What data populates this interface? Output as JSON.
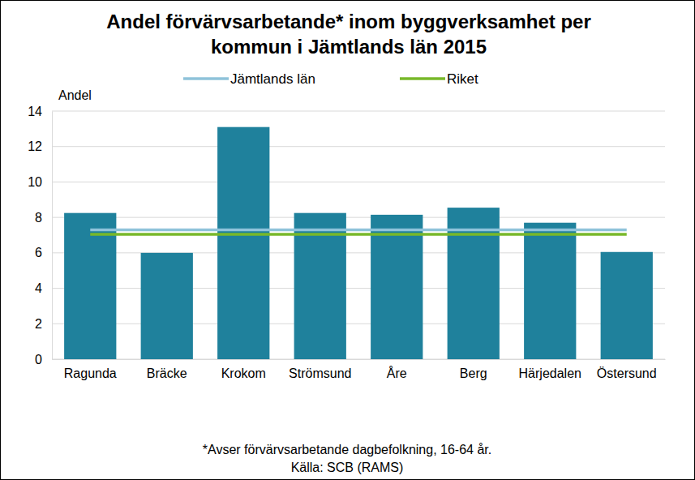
{
  "chart_data": {
    "type": "bar",
    "title": [
      "Andel förvärvsarbetande* inom byggverksamhet per",
      "kommun i Jämtlands län 2015"
    ],
    "ylabel": "Andel",
    "categories": [
      "Ragunda",
      "Bräcke",
      "Krokom",
      "Strömsund",
      "Åre",
      "Berg",
      "Härjedalen",
      "Östersund"
    ],
    "values": [
      8.25,
      6.0,
      13.1,
      8.25,
      8.15,
      8.55,
      7.7,
      6.05
    ],
    "color": "#1f819c",
    "reference_lines": [
      {
        "name": "Jämtlands län",
        "color": "#8fc3da",
        "value": 7.3
      },
      {
        "name": "Riket",
        "color": "#78b82a",
        "value": 7.05
      }
    ],
    "ylim": [
      0,
      14
    ],
    "yticks": [
      0,
      2,
      4,
      6,
      8,
      10,
      12,
      14
    ],
    "grid": true,
    "legend": "top",
    "annotations": [
      "*Avser förvärvsarbetande dagbefolkning, 16-64 år.",
      "Källa: SCB (RAMS)"
    ]
  }
}
